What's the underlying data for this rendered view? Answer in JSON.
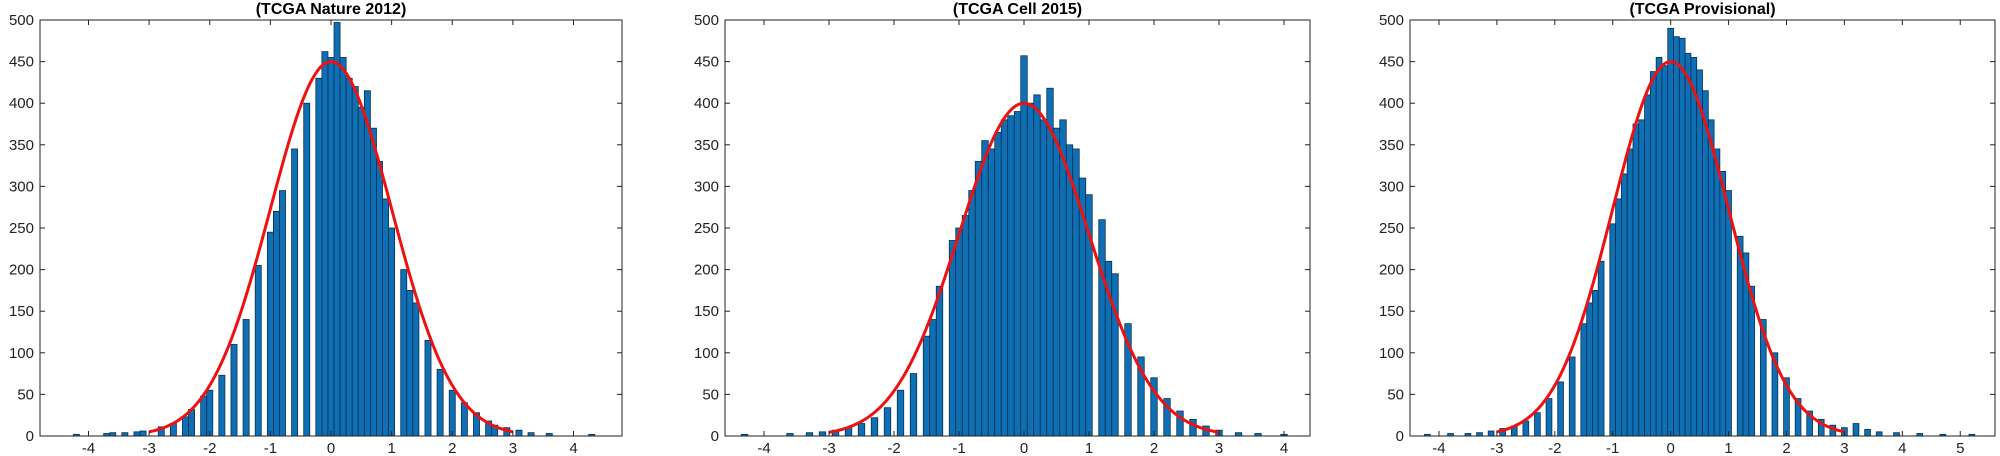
{
  "figure": {
    "colors": {
      "bar_fill": "#0f6fb5",
      "bar_edge": "#08304f",
      "fit_line": "#ee1111",
      "axis": "#222222"
    }
  },
  "chart_data": [
    {
      "type": "bar",
      "title": "(TCGA Nature 2012)",
      "xlabel": "",
      "ylabel": "",
      "xlim": [
        -4.8,
        4.8
      ],
      "ylim": [
        0,
        500
      ],
      "xticks": [
        -4,
        -3,
        -2,
        -1,
        0,
        1,
        2,
        3,
        4
      ],
      "yticks": [
        0,
        50,
        100,
        150,
        200,
        250,
        300,
        350,
        400,
        450,
        500
      ],
      "bin_width": 0.1,
      "fit": {
        "type": "normal",
        "mean": 0,
        "sd": 1,
        "peak": 450
      },
      "bins": [
        [
          -4.2,
          2
        ],
        [
          -3.7,
          3
        ],
        [
          -3.6,
          4
        ],
        [
          -3.4,
          4
        ],
        [
          -3.2,
          5
        ],
        [
          -3.1,
          6
        ],
        [
          -2.8,
          11
        ],
        [
          -2.6,
          15
        ],
        [
          -2.4,
          23
        ],
        [
          -2.3,
          32
        ],
        [
          -2.1,
          48
        ],
        [
          -2.0,
          55
        ],
        [
          -1.8,
          73
        ],
        [
          -1.6,
          110
        ],
        [
          -1.4,
          140
        ],
        [
          -1.2,
          205
        ],
        [
          -1.0,
          245
        ],
        [
          -0.9,
          270
        ],
        [
          -0.8,
          295
        ],
        [
          -0.6,
          345
        ],
        [
          -0.4,
          400
        ],
        [
          -0.2,
          430
        ],
        [
          -0.1,
          462
        ],
        [
          0.0,
          455
        ],
        [
          0.1,
          497
        ],
        [
          0.2,
          455
        ],
        [
          0.3,
          430
        ],
        [
          0.4,
          420
        ],
        [
          0.5,
          395
        ],
        [
          0.6,
          415
        ],
        [
          0.7,
          370
        ],
        [
          0.8,
          330
        ],
        [
          0.9,
          285
        ],
        [
          1.0,
          250
        ],
        [
          1.2,
          200
        ],
        [
          1.3,
          175
        ],
        [
          1.4,
          160
        ],
        [
          1.6,
          115
        ],
        [
          1.8,
          80
        ],
        [
          2.0,
          55
        ],
        [
          2.2,
          40
        ],
        [
          2.4,
          28
        ],
        [
          2.6,
          18
        ],
        [
          2.7,
          13
        ],
        [
          2.9,
          10
        ],
        [
          3.1,
          7
        ],
        [
          3.3,
          4
        ],
        [
          3.6,
          3
        ],
        [
          4.3,
          2
        ]
      ]
    },
    {
      "type": "bar",
      "title": "(TCGA Cell 2015)",
      "xlabel": "",
      "ylabel": "",
      "xlim": [
        -4.6,
        4.4
      ],
      "ylim": [
        0,
        500
      ],
      "xticks": [
        -4,
        -3,
        -2,
        -1,
        0,
        1,
        2,
        3,
        4
      ],
      "yticks": [
        0,
        50,
        100,
        150,
        200,
        250,
        300,
        350,
        400,
        450,
        500
      ],
      "bin_width": 0.1,
      "fit": {
        "type": "normal",
        "mean": 0,
        "sd": 1,
        "peak": 400
      },
      "bins": [
        [
          -4.3,
          2
        ],
        [
          -3.6,
          3
        ],
        [
          -3.3,
          4
        ],
        [
          -3.1,
          5
        ],
        [
          -2.9,
          7
        ],
        [
          -2.7,
          10
        ],
        [
          -2.5,
          15
        ],
        [
          -2.3,
          22
        ],
        [
          -2.1,
          34
        ],
        [
          -1.9,
          55
        ],
        [
          -1.7,
          75
        ],
        [
          -1.5,
          120
        ],
        [
          -1.4,
          140
        ],
        [
          -1.3,
          180
        ],
        [
          -1.1,
          235
        ],
        [
          -1.0,
          250
        ],
        [
          -0.9,
          265
        ],
        [
          -0.8,
          295
        ],
        [
          -0.7,
          330
        ],
        [
          -0.6,
          355
        ],
        [
          -0.5,
          345
        ],
        [
          -0.4,
          365
        ],
        [
          -0.3,
          380
        ],
        [
          -0.2,
          385
        ],
        [
          -0.1,
          390
        ],
        [
          0.0,
          457
        ],
        [
          0.1,
          400
        ],
        [
          0.2,
          410
        ],
        [
          0.3,
          380
        ],
        [
          0.4,
          418
        ],
        [
          0.5,
          370
        ],
        [
          0.6,
          380
        ],
        [
          0.7,
          350
        ],
        [
          0.8,
          345
        ],
        [
          0.9,
          310
        ],
        [
          1.0,
          290
        ],
        [
          1.2,
          260
        ],
        [
          1.3,
          210
        ],
        [
          1.4,
          195
        ],
        [
          1.6,
          135
        ],
        [
          1.8,
          95
        ],
        [
          2.0,
          70
        ],
        [
          2.2,
          45
        ],
        [
          2.4,
          30
        ],
        [
          2.6,
          20
        ],
        [
          2.8,
          12
        ],
        [
          3.0,
          7
        ],
        [
          3.3,
          4
        ],
        [
          3.6,
          3
        ],
        [
          4.0,
          2
        ]
      ]
    },
    {
      "type": "bar",
      "title": "(TCGA Provisional)",
      "xlabel": "",
      "ylabel": "",
      "xlim": [
        -4.5,
        5.6
      ],
      "ylim": [
        0,
        500
      ],
      "xticks": [
        -4,
        -3,
        -2,
        -1,
        0,
        1,
        2,
        3,
        4,
        5
      ],
      "yticks": [
        0,
        50,
        100,
        150,
        200,
        250,
        300,
        350,
        400,
        450,
        500
      ],
      "bin_width": 0.1,
      "fit": {
        "type": "normal",
        "mean": 0,
        "sd": 1,
        "peak": 450
      },
      "bins": [
        [
          -4.2,
          2
        ],
        [
          -3.8,
          3
        ],
        [
          -3.5,
          3
        ],
        [
          -3.3,
          4
        ],
        [
          -3.1,
          6
        ],
        [
          -2.9,
          9
        ],
        [
          -2.7,
          12
        ],
        [
          -2.5,
          18
        ],
        [
          -2.3,
          28
        ],
        [
          -2.1,
          45
        ],
        [
          -1.9,
          65
        ],
        [
          -1.7,
          95
        ],
        [
          -1.5,
          135
        ],
        [
          -1.4,
          160
        ],
        [
          -1.3,
          175
        ],
        [
          -1.2,
          210
        ],
        [
          -1.0,
          255
        ],
        [
          -0.9,
          285
        ],
        [
          -0.8,
          315
        ],
        [
          -0.7,
          345
        ],
        [
          -0.6,
          375
        ],
        [
          -0.5,
          380
        ],
        [
          -0.4,
          410
        ],
        [
          -0.3,
          438
        ],
        [
          -0.2,
          455
        ],
        [
          -0.1,
          445
        ],
        [
          0.0,
          490
        ],
        [
          0.1,
          480
        ],
        [
          0.2,
          478
        ],
        [
          0.3,
          460
        ],
        [
          0.4,
          455
        ],
        [
          0.5,
          440
        ],
        [
          0.6,
          415
        ],
        [
          0.7,
          380
        ],
        [
          0.8,
          345
        ],
        [
          0.9,
          318
        ],
        [
          1.0,
          295
        ],
        [
          1.2,
          240
        ],
        [
          1.3,
          220
        ],
        [
          1.4,
          180
        ],
        [
          1.6,
          140
        ],
        [
          1.8,
          100
        ],
        [
          2.0,
          70
        ],
        [
          2.2,
          45
        ],
        [
          2.4,
          30
        ],
        [
          2.6,
          20
        ],
        [
          2.8,
          13
        ],
        [
          3.0,
          10
        ],
        [
          3.2,
          15
        ],
        [
          3.4,
          8
        ],
        [
          3.6,
          5
        ],
        [
          3.9,
          4
        ],
        [
          4.3,
          3
        ],
        [
          4.7,
          2
        ],
        [
          5.2,
          2
        ]
      ]
    }
  ]
}
